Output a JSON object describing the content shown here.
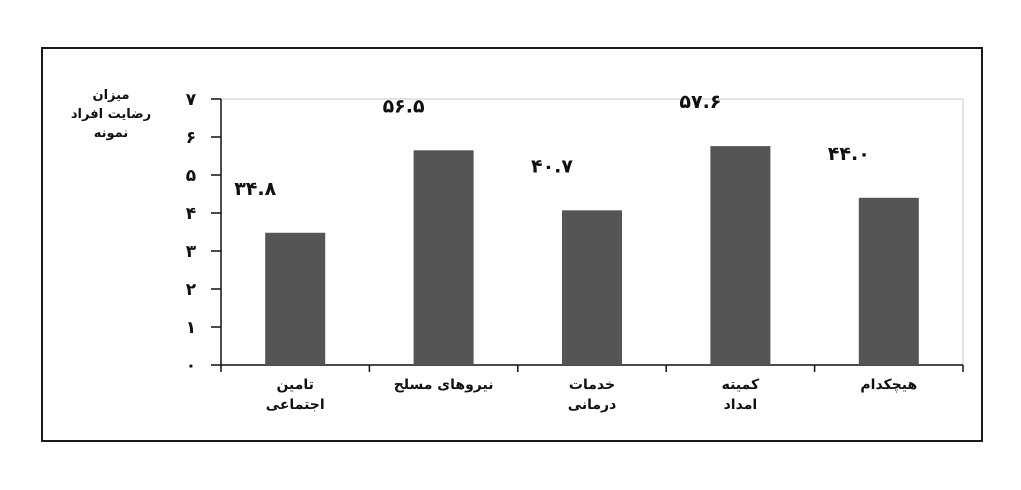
{
  "chart_data": {
    "type": "bar",
    "ylabel": [
      "میزان",
      "رضایت افراد",
      "نمونه"
    ],
    "yticks": [
      "۰",
      "۱",
      "۲",
      "۳",
      "۴",
      "۵",
      "۶",
      "۷"
    ],
    "ylim": [
      0,
      7
    ],
    "categories": [
      [
        "تامین",
        "اجتماعی"
      ],
      [
        "نیروهای مسلح"
      ],
      [
        "خدمات",
        "درمانی"
      ],
      [
        "کمیته",
        "امداد"
      ],
      [
        "هیچکدام"
      ]
    ],
    "values": [
      3.48,
      5.65,
      4.07,
      5.76,
      4.4
    ],
    "data_labels": [
      "۳۴.۸",
      "۵۶.۵",
      "۴۰.۷",
      "۵۷.۶",
      "۴۴.۰"
    ],
    "bar_color": "#555555",
    "grid": false
  }
}
